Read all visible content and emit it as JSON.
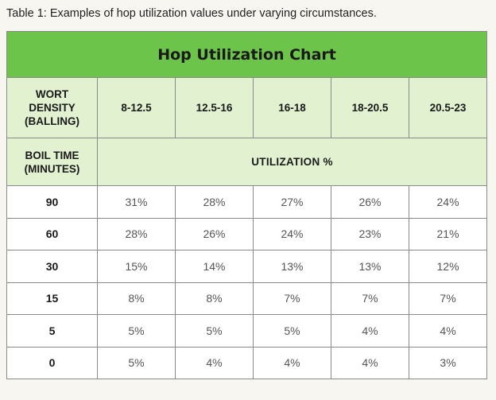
{
  "caption": "Table 1: Examples of hop utilization values under varying circumstances.",
  "table": {
    "title": "Hop Utilization Chart",
    "wort_label_lines": [
      "WORT",
      "DENSITY",
      "(BALLING)"
    ],
    "boil_label_lines": [
      "BOIL TIME",
      "(MINUTES)"
    ],
    "utilization_label": "UTILIZATION %",
    "columns": [
      "8-12.5",
      "12.5-16",
      "16-18",
      "18-20.5",
      "20.5-23"
    ],
    "rows": [
      {
        "boil": "90",
        "values": [
          "31%",
          "28%",
          "27%",
          "26%",
          "24%"
        ]
      },
      {
        "boil": "60",
        "values": [
          "28%",
          "26%",
          "24%",
          "23%",
          "21%"
        ]
      },
      {
        "boil": "30",
        "values": [
          "15%",
          "14%",
          "13%",
          "13%",
          "12%"
        ]
      },
      {
        "boil": "15",
        "values": [
          "8%",
          "8%",
          "7%",
          "7%",
          "7%"
        ]
      },
      {
        "boil": "5",
        "values": [
          "5%",
          "5%",
          "5%",
          "4%",
          "4%"
        ]
      },
      {
        "boil": "0",
        "values": [
          "5%",
          "4%",
          "4%",
          "4%",
          "3%"
        ]
      }
    ]
  },
  "colors": {
    "title_background": "#6dc44a",
    "header_background": "#e2f1cf",
    "border": "#8a8a8a"
  }
}
